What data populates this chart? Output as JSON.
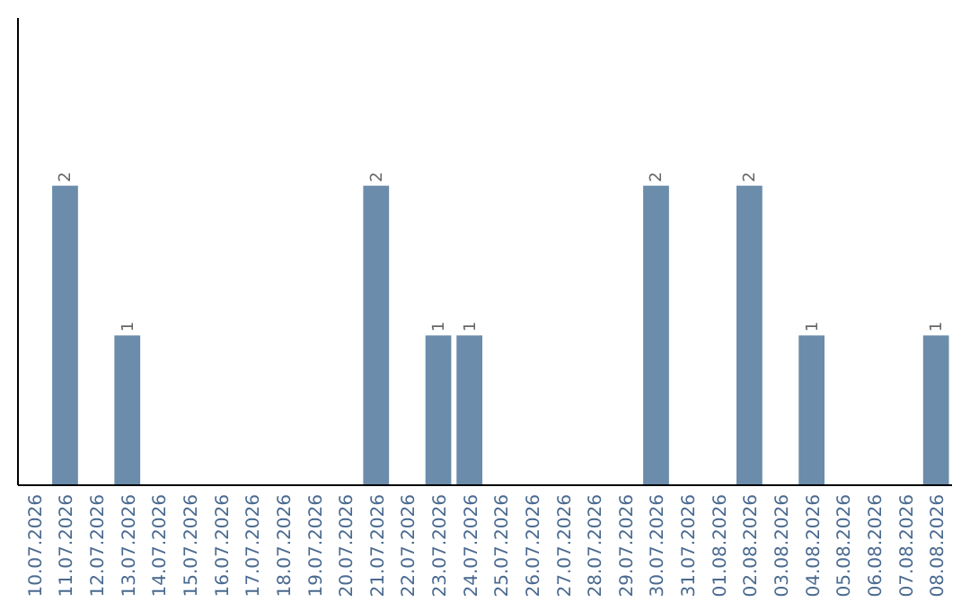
{
  "chart_data": {
    "type": "bar",
    "categories": [
      "10.07.2026",
      "11.07.2026",
      "12.07.2026",
      "13.07.2026",
      "14.07.2026",
      "15.07.2026",
      "16.07.2026",
      "17.07.2026",
      "18.07.2026",
      "19.07.2026",
      "20.07.2026",
      "21.07.2026",
      "22.07.2026",
      "23.07.2026",
      "24.07.2026",
      "25.07.2026",
      "26.07.2026",
      "27.07.2026",
      "28.07.2026",
      "29.07.2026",
      "30.07.2026",
      "31.07.2026",
      "01.08.2026",
      "02.08.2026",
      "03.08.2026",
      "04.08.2026",
      "05.08.2026",
      "06.08.2026",
      "07.08.2026",
      "08.08.2026"
    ],
    "values": [
      0,
      2,
      0,
      1,
      0,
      0,
      0,
      0,
      0,
      0,
      0,
      2,
      0,
      1,
      1,
      0,
      0,
      0,
      0,
      0,
      2,
      0,
      0,
      2,
      0,
      1,
      0,
      0,
      0,
      1
    ],
    "value_labels": [
      null,
      "2",
      null,
      "1",
      null,
      null,
      null,
      null,
      null,
      null,
      null,
      "2",
      null,
      "1",
      "1",
      null,
      null,
      null,
      null,
      null,
      "2",
      null,
      null,
      "2",
      null,
      "1",
      null,
      null,
      null,
      "1"
    ],
    "color": "#6b8cab",
    "tick_labels": "x"
  }
}
